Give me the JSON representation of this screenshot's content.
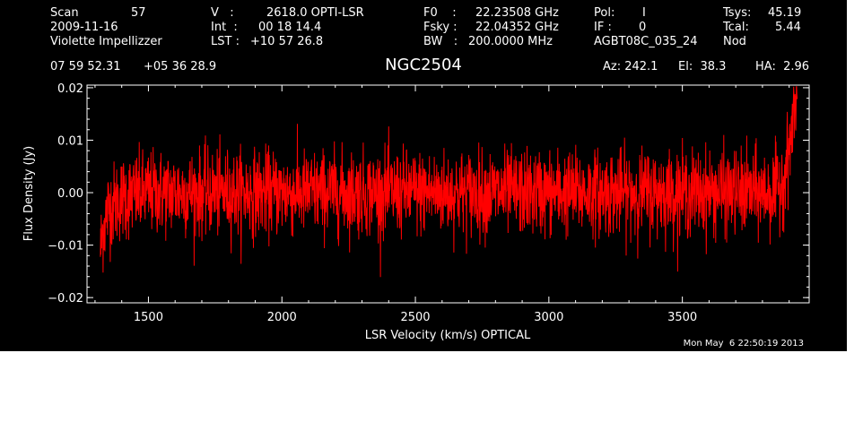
{
  "header": {
    "scan_label": "Scan",
    "scan_value": "57",
    "date": "2009-11-16",
    "observer": "Violette Impellizzer",
    "v_label": "V   :",
    "v_value": "2618.0 OPTI-LSR",
    "int_label": "Int  :",
    "int_value": "00 18 14.4",
    "lst_label": "LST :",
    "lst_value": "+10 57 26.8",
    "f0_label": "F0    :",
    "f0_value": "22.23508 GHz",
    "fsky_label": "Fsky :",
    "fsky_value": "22.04352 GHz",
    "bw_label": "BW   :",
    "bw_value": "200.0000 MHz",
    "pol_label": "Pol:",
    "pol_value": "I",
    "if_label": "IF :",
    "if_value": "0",
    "project": "AGBT08C_035_24",
    "tsys_label": "Tsys:",
    "tsys_value": "45.19",
    "tcal_label": "Tcal:",
    "tcal_value": "5.44",
    "mode": "Nod",
    "ra": "07 59 52.31",
    "dec": "+05 36 28.9",
    "az": "Az: 242.1",
    "el": "El:  38.3",
    "ha": "HA:  2.96"
  },
  "timestamp": "Mon May  6 22:50:19 2013",
  "colors": {
    "background": "#000000",
    "foreground": "#ffffff",
    "series": "#ff0000"
  },
  "chart_data": {
    "type": "line",
    "title": "NGC2504",
    "xlabel": "LSR Velocity (km/s) OPTICAL",
    "ylabel": "Flux Density (Jy)",
    "xlim": [
      1270,
      3975
    ],
    "ylim": [
      -0.021,
      0.0205
    ],
    "xticks": [
      1500,
      2000,
      2500,
      3000,
      3500
    ],
    "xtick_labels": [
      "1500",
      "2000",
      "2500",
      "3000",
      "3500"
    ],
    "yticks": [
      -0.02,
      -0.01,
      0.0,
      0.01,
      0.02
    ],
    "ytick_labels": [
      "−0.02",
      "−0.01",
      "0.00",
      "0.01",
      "0.02"
    ],
    "grid": false,
    "series": [
      {
        "color": "#ff0000",
        "x_range": [
          1320,
          3930
        ],
        "noise_rms": 0.004,
        "points_envelope": {
          "x": [
            1320,
            1330,
            1350,
            1400,
            1500,
            2000,
            2500,
            3000,
            3500,
            3850,
            3880,
            3900,
            3915,
            3930
          ],
          "y_mean": [
            -0.011,
            -0.007,
            -0.003,
            -0.001,
            0.0,
            0.0,
            0.0,
            0.0,
            0.0,
            0.0,
            0.003,
            0.008,
            0.014,
            0.019
          ]
        }
      }
    ]
  }
}
